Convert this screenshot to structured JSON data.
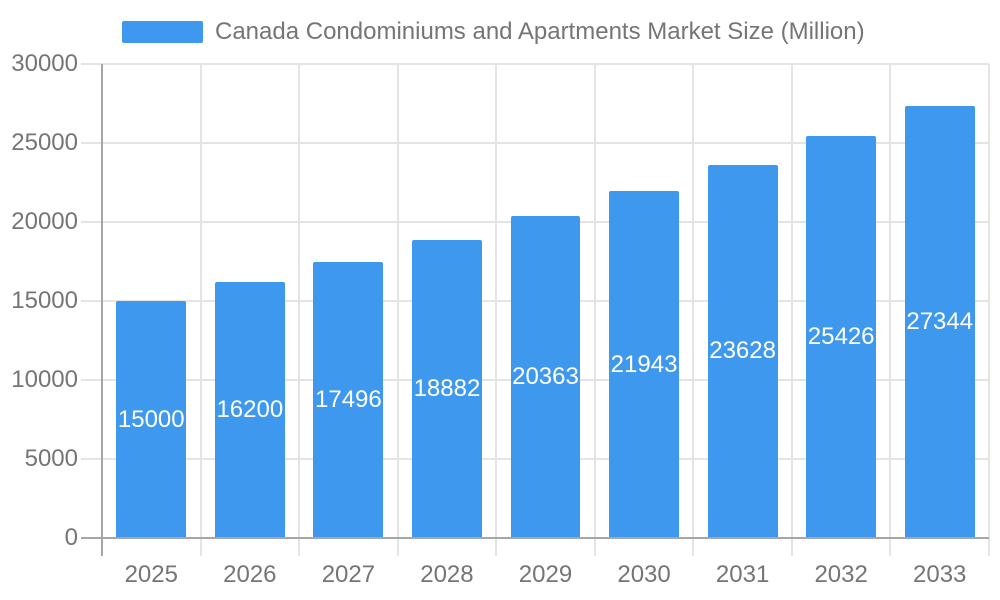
{
  "chart_data": {
    "type": "bar",
    "title": "Canada Condominiums and Apartments Market Size (Million)",
    "legend_entries": [
      "Canada Condominiums and Apartments Market Size (Million)"
    ],
    "legend_position": "top",
    "categories": [
      "2025",
      "2026",
      "2027",
      "2028",
      "2029",
      "2030",
      "2031",
      "2032",
      "2033"
    ],
    "values": [
      15000,
      16200,
      17496,
      18882,
      20363,
      21943,
      23628,
      25426,
      27344
    ],
    "xlabel": "",
    "ylabel": "",
    "ylim": [
      0,
      30000
    ],
    "yticks": [
      0,
      5000,
      10000,
      15000,
      20000,
      25000,
      30000
    ],
    "grid": true,
    "value_labels": "inside-center"
  },
  "colors": {
    "bar": "#3E99EE",
    "grid": "#E4E4E4",
    "axis": "#A6A6A6",
    "text": "#757575",
    "value_label": "#FFFFFF",
    "background": "#FFFFFF"
  }
}
